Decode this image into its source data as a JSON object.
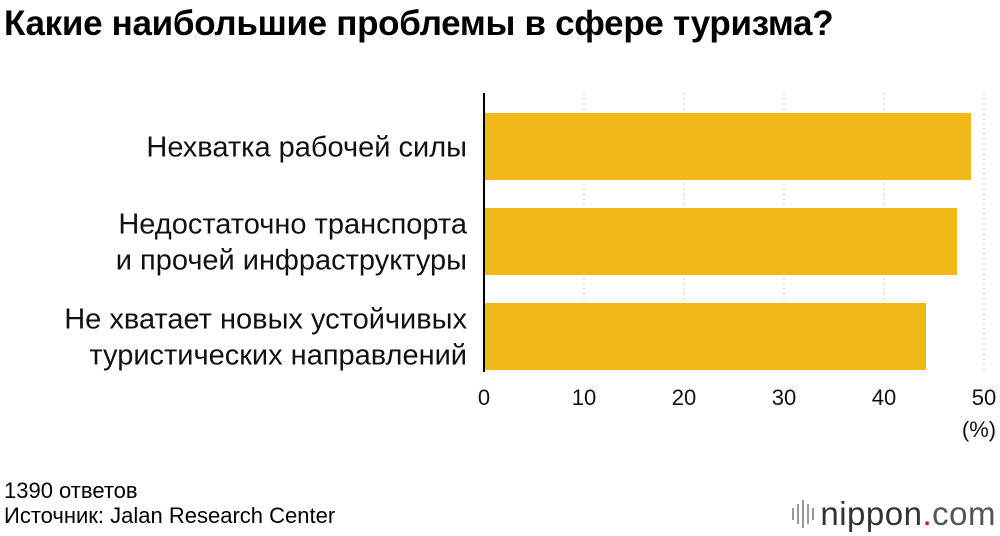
{
  "title": "Какие наибольшие проблемы в сфере туризма?",
  "chart_data": {
    "type": "bar",
    "orientation": "horizontal",
    "categories": [
      [
        "Нехватка рабочей силы"
      ],
      [
        "Недостаточно транспорта",
        "и прочей инфраструктуры"
      ],
      [
        "Не хватает новых устойчивых",
        "туристических направлений"
      ]
    ],
    "values": [
      48.7,
      47.3,
      44.2
    ],
    "xlim": [
      0,
      50
    ],
    "xticks": [
      0,
      10,
      20,
      30,
      40,
      50
    ],
    "unit": "(%)",
    "bar_color": "#f0b917",
    "grid": true
  },
  "footer": {
    "respondents": "1390 ответов",
    "source": "Источник: Jalan Research Center"
  },
  "brand": {
    "name": "nippon",
    "dot": ".",
    "tld": "com",
    "icon": "nippon-stripes-icon",
    "accent_color": "#e60012"
  }
}
